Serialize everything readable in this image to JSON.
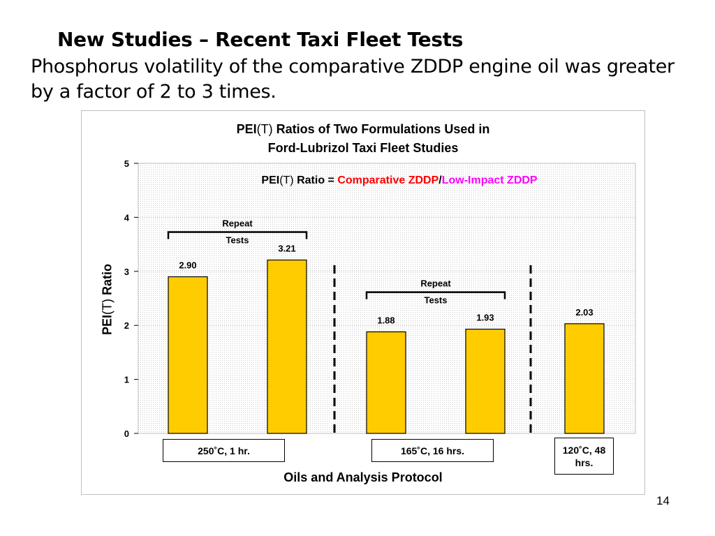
{
  "slide": {
    "title": "New Studies – Recent Taxi Fleet Tests",
    "subtitle": "Phosphorus volatility of the comparative ZDDP engine oil was greater by a factor of 2 to 3 times.",
    "page_number": "14"
  },
  "chart_data": {
    "type": "bar",
    "title_prefix": "PEI",
    "title_t": "(T)",
    "title_line1_rest": " Ratios of Two Formulations Used in",
    "title_line2": "Ford-Lubrizol Taxi Fleet Studies",
    "formula": {
      "prefix": "PEI",
      "t": "(T)",
      "ratio_text": " Ratio = ",
      "numerator": "Comparative ZDDP",
      "slash": "/",
      "denominator": "Low-Impact ZDDP"
    },
    "ylabel_prefix": "PEI",
    "ylabel_t": "(T)",
    "ylabel_rest": " Ratio",
    "xlabel": "Oils and Analysis Protocol",
    "ylim": [
      0,
      5
    ],
    "yticks": [
      "0",
      "1",
      "2",
      "3",
      "4",
      "5"
    ],
    "grid": "dotted",
    "bar_color": "#ffcc00",
    "values": [
      2.9,
      3.21,
      1.88,
      1.93,
      2.03
    ],
    "value_labels": [
      "2.90",
      "3.21",
      "1.88",
      "1.93",
      "2.03"
    ],
    "groups": [
      {
        "label": "250˚C, 1 hr.",
        "bars": [
          0,
          1
        ],
        "repeat_label": [
          "Repeat",
          "Tests"
        ]
      },
      {
        "label": "165˚C, 16 hrs.",
        "bars": [
          2,
          3
        ],
        "repeat_label": [
          "Repeat",
          "Tests"
        ]
      },
      {
        "label": "120˚C, 48 hrs.",
        "bars": [
          4
        ]
      }
    ],
    "colors": {
      "numerator": "#ff0000",
      "denominator": "#ff00ff"
    }
  }
}
